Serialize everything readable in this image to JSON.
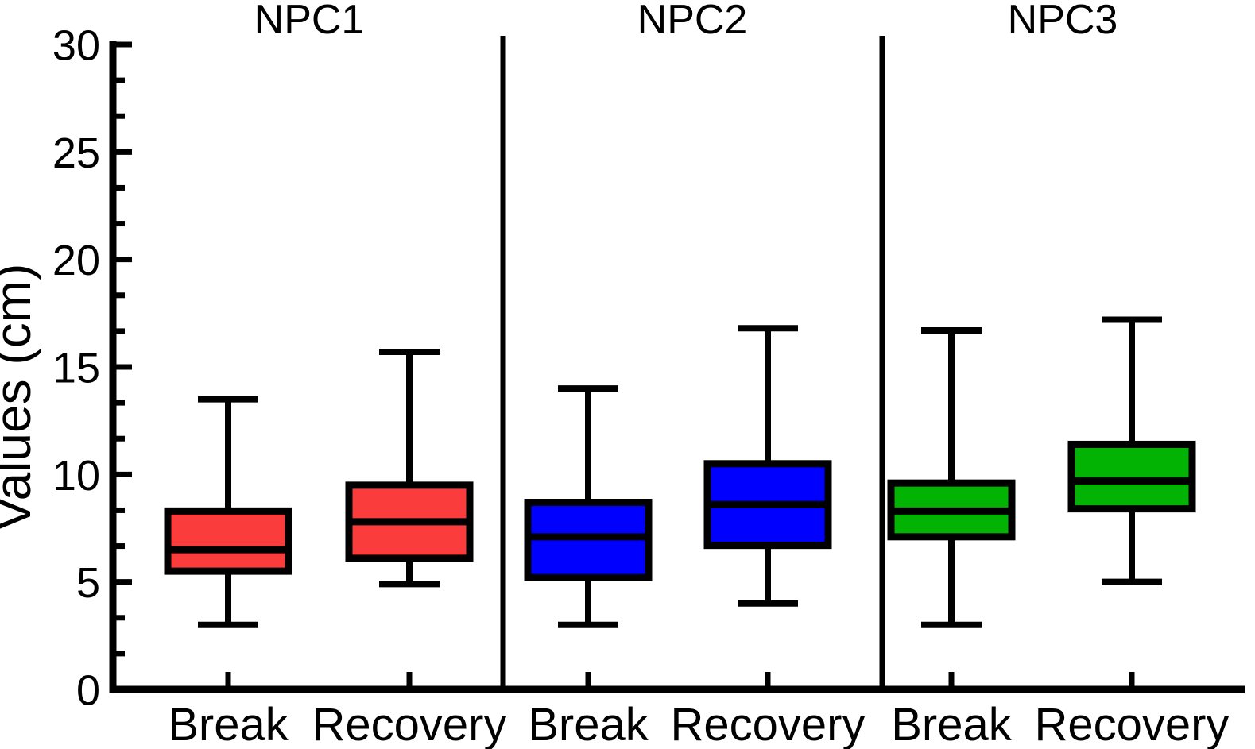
{
  "chart_data": {
    "type": "boxplot",
    "title": "",
    "ylabel": "Values (cm)",
    "xlabel": "",
    "ylim": [
      0,
      30
    ],
    "yticks": [
      0,
      5,
      10,
      15,
      20,
      25,
      30
    ],
    "minor_ticks_between_majors": 2,
    "grid": false,
    "legend": "none",
    "axis_color": "#000000",
    "background_color": "#ffffff",
    "panels": [
      {
        "label": "NPC1",
        "color": "#fb3c3c",
        "groups": [
          {
            "label": "Break",
            "whisker_low": 3.0,
            "q1": 5.5,
            "median": 6.5,
            "q3": 8.3,
            "whisker_high": 13.5
          },
          {
            "label": "Recovery",
            "whisker_low": 4.9,
            "q1": 6.1,
            "median": 7.8,
            "q3": 9.5,
            "whisker_high": 15.7
          }
        ]
      },
      {
        "label": "NPC2",
        "color": "#0000fe",
        "groups": [
          {
            "label": "Break",
            "whisker_low": 3.0,
            "q1": 5.2,
            "median": 7.1,
            "q3": 8.7,
            "whisker_high": 14.0
          },
          {
            "label": "Recovery",
            "whisker_low": 4.0,
            "q1": 6.7,
            "median": 8.6,
            "q3": 10.5,
            "whisker_high": 16.8
          }
        ]
      },
      {
        "label": "NPC3",
        "color": "#03b303",
        "groups": [
          {
            "label": "Break",
            "whisker_low": 3.0,
            "q1": 7.1,
            "median": 8.3,
            "q3": 9.6,
            "whisker_high": 16.7
          },
          {
            "label": "Recovery",
            "whisker_low": 5.0,
            "q1": 8.4,
            "median": 9.7,
            "q3": 11.4,
            "whisker_high": 17.2
          }
        ]
      }
    ]
  }
}
